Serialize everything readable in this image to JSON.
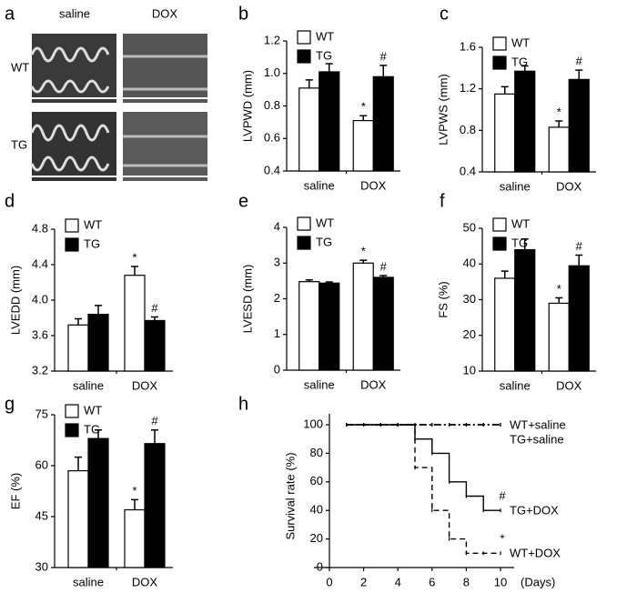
{
  "image_panel": {
    "panel_label": "a",
    "columns": [
      "saline",
      "DOX"
    ],
    "rows": [
      "WT",
      "TG"
    ]
  },
  "chart_data": [
    {
      "type": "bar",
      "panel_label": "b",
      "y_label": "LVPWD (mm)",
      "categories": [
        "saline",
        "DOX"
      ],
      "ylim": [
        0.4,
        1.2
      ],
      "yticks": [
        0.4,
        0.6,
        0.8,
        {
          "value": 1,
          "label": "1.0"
        },
        1.2
      ],
      "series": [
        {
          "name": "WT",
          "color": "#ffffff",
          "values": [
            0.91,
            0.71
          ],
          "errors": [
            0.05,
            0.03
          ],
          "annotations": [
            null,
            "*"
          ]
        },
        {
          "name": "TG",
          "color": "#000000",
          "values": [
            1.01,
            0.98
          ],
          "errors": [
            0.05,
            0.07
          ],
          "annotations": [
            null,
            "#"
          ]
        }
      ]
    },
    {
      "type": "bar",
      "panel_label": "c",
      "y_label": "LVPWS (mm)",
      "categories": [
        "saline",
        "DOX"
      ],
      "ylim": [
        0.4,
        1.6
      ],
      "yticks": [
        0.4,
        0.8,
        1.2,
        1.6
      ],
      "series": [
        {
          "name": "WT",
          "color": "#ffffff",
          "values": [
            1.15,
            0.83
          ],
          "errors": [
            0.07,
            0.06
          ],
          "annotations": [
            null,
            "*"
          ]
        },
        {
          "name": "TG",
          "color": "#000000",
          "values": [
            1.37,
            1.29
          ],
          "errors": [
            0.05,
            0.09
          ],
          "annotations": [
            null,
            "#"
          ]
        }
      ]
    },
    {
      "type": "bar",
      "panel_label": "d",
      "y_label": "LVEDD (mm)",
      "categories": [
        "saline",
        "DOX"
      ],
      "ylim": [
        3.2,
        4.8
      ],
      "yticks": [
        3.2,
        3.6,
        {
          "value": 4,
          "label": "4.0"
        },
        4.4,
        4.8
      ],
      "series": [
        {
          "name": "WT",
          "color": "#ffffff",
          "values": [
            3.72,
            4.28
          ],
          "errors": [
            0.07,
            0.1
          ],
          "annotations": [
            null,
            "*"
          ]
        },
        {
          "name": "TG",
          "color": "#000000",
          "values": [
            3.84,
            3.77
          ],
          "errors": [
            0.1,
            0.04
          ],
          "annotations": [
            null,
            "#"
          ]
        }
      ]
    },
    {
      "type": "bar",
      "panel_label": "e",
      "y_label": "LVESD (mm)",
      "categories": [
        "saline",
        "DOX"
      ],
      "ylim": [
        0,
        4
      ],
      "yticks": [
        0,
        1,
        2,
        3,
        4
      ],
      "series": [
        {
          "name": "WT",
          "color": "#ffffff",
          "values": [
            2.48,
            3.0
          ],
          "errors": [
            0.05,
            0.08
          ],
          "annotations": [
            null,
            "*"
          ]
        },
        {
          "name": "TG",
          "color": "#000000",
          "values": [
            2.44,
            2.6
          ],
          "errors": [
            0.03,
            0.05
          ],
          "annotations": [
            null,
            "#"
          ]
        }
      ]
    },
    {
      "type": "bar",
      "panel_label": "f",
      "y_label": "FS (%)",
      "categories": [
        "saline",
        "DOX"
      ],
      "ylim": [
        10,
        50
      ],
      "yticks": [
        10,
        20,
        30,
        40,
        50
      ],
      "series": [
        {
          "name": "WT",
          "color": "#ffffff",
          "values": [
            36,
            29
          ],
          "errors": [
            2,
            1.5
          ],
          "annotations": [
            null,
            "*"
          ]
        },
        {
          "name": "TG",
          "color": "#000000",
          "values": [
            44,
            39.5
          ],
          "errors": [
            3,
            3
          ],
          "annotations": [
            null,
            "#"
          ]
        }
      ]
    },
    {
      "type": "bar",
      "panel_label": "g",
      "y_label": "EF (%)",
      "categories": [
        "saline",
        "DOX"
      ],
      "ylim": [
        30,
        75
      ],
      "yticks": [
        30,
        45,
        60,
        75
      ],
      "series": [
        {
          "name": "WT",
          "color": "#ffffff",
          "values": [
            58.5,
            47
          ],
          "errors": [
            4,
            3
          ],
          "annotations": [
            null,
            "*"
          ]
        },
        {
          "name": "TG",
          "color": "#000000",
          "values": [
            68,
            66.5
          ],
          "errors": [
            2.5,
            4
          ],
          "annotations": [
            null,
            "#"
          ]
        }
      ]
    },
    {
      "type": "line",
      "panel_label": "h",
      "y_label": "Survival rate (%)",
      "x_label": "(Days)",
      "x": [
        1,
        2,
        3,
        4,
        5,
        6,
        7,
        8,
        9,
        10
      ],
      "xlim": [
        0,
        10
      ],
      "xticks": [
        0,
        2,
        4,
        6,
        8,
        10
      ],
      "ylim": [
        0,
        100
      ],
      "yticks": [
        0,
        20,
        40,
        60,
        80,
        100
      ],
      "series": [
        {
          "name": "WT+saline",
          "color": "#000000",
          "dash": "dashdot",
          "values": [
            100,
            100,
            100,
            100,
            100,
            100,
            100,
            100,
            100,
            100
          ]
        },
        {
          "name": "TG+saline",
          "color": "#000000",
          "dash": "dashdot",
          "values": [
            100,
            100,
            100,
            100,
            100,
            100,
            100,
            100,
            100,
            100
          ]
        },
        {
          "name": "TG+DOX",
          "color": "#000000",
          "dash": "solid",
          "values": [
            100,
            100,
            100,
            100,
            90,
            80,
            60,
            50,
            40,
            40
          ],
          "annotation": "#"
        },
        {
          "name": "WT+DOX",
          "color": "#000000",
          "dash": "dashed",
          "values": [
            100,
            100,
            100,
            100,
            70,
            40,
            20,
            10,
            10,
            10
          ],
          "annotation": "*"
        }
      ]
    }
  ]
}
